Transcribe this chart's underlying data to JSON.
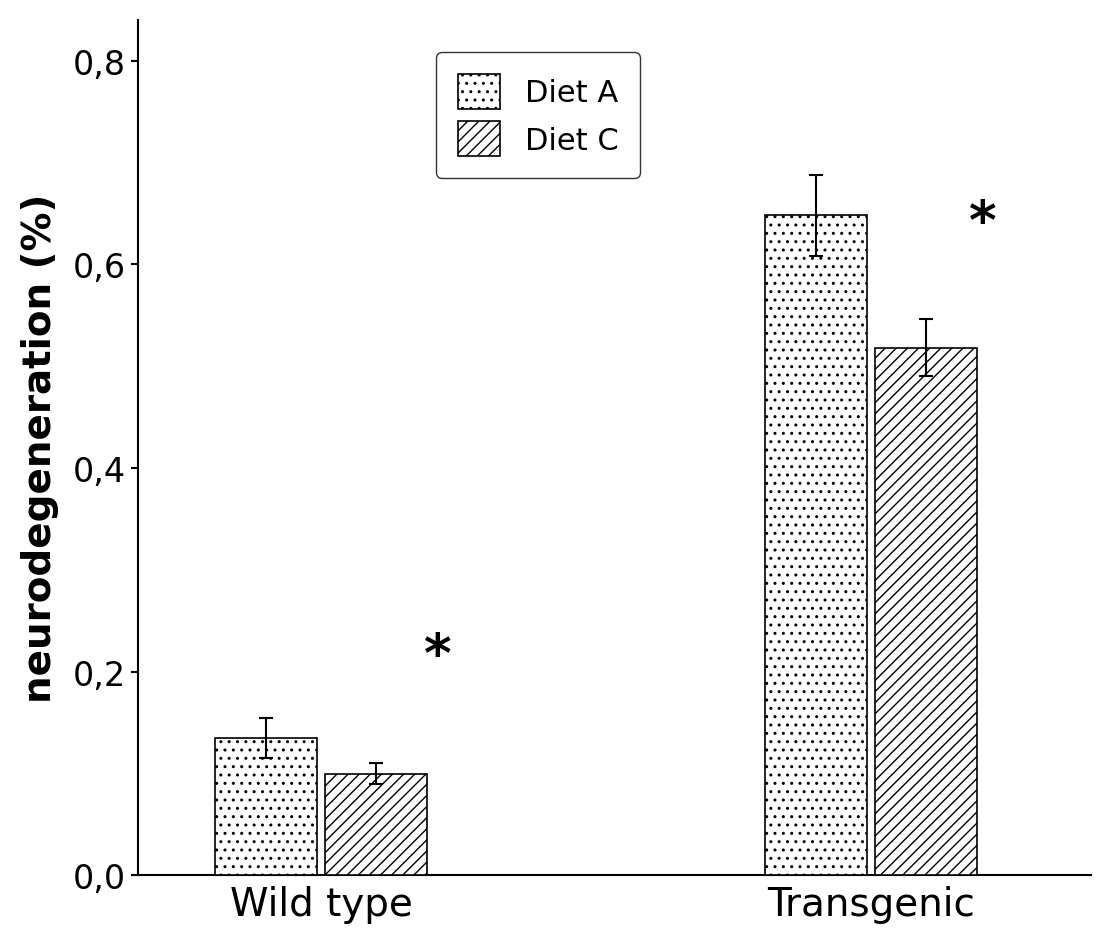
{
  "groups": [
    "Wild type",
    "Transgenic"
  ],
  "diet_a_values": [
    0.135,
    0.648
  ],
  "diet_c_values": [
    0.1,
    0.518
  ],
  "diet_a_errors": [
    0.02,
    0.04
  ],
  "diet_c_errors": [
    0.01,
    0.028
  ],
  "ylabel": "neurodegeneration (%)",
  "ylim": [
    0,
    0.84
  ],
  "yticks": [
    0.0,
    0.2,
    0.4,
    0.6,
    0.8
  ],
  "yticklabels": [
    "0,0",
    "0,2",
    "0,4",
    "0,6",
    "0,8"
  ],
  "legend_labels": [
    "Diet A",
    "Diet C"
  ],
  "background_color": "#ffffff",
  "bar_width": 0.28,
  "group_centers": [
    1.0,
    2.5
  ],
  "xlim": [
    0.5,
    3.1
  ],
  "font_size_ticks": 24,
  "font_size_ylabel": 28,
  "font_size_legend": 22,
  "font_size_xticks": 28,
  "font_size_star": 38,
  "hatch_a": "..",
  "hatch_c": "///"
}
